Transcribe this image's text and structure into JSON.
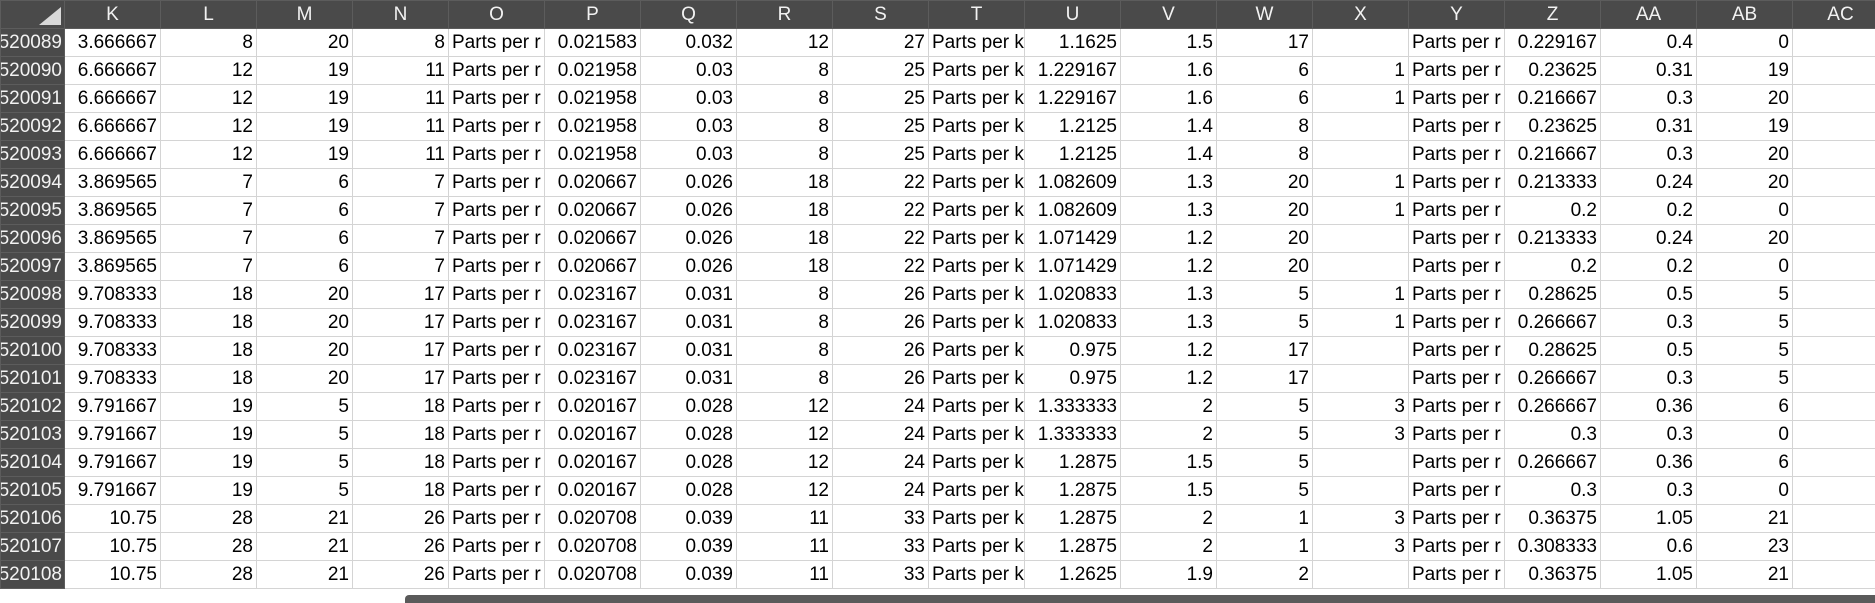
{
  "columns": [
    "K",
    "L",
    "M",
    "N",
    "O",
    "P",
    "Q",
    "R",
    "S",
    "T",
    "U",
    "V",
    "W",
    "X",
    "Y",
    "Z",
    "AA",
    "AB",
    "AC"
  ],
  "text_columns": [
    "O",
    "T",
    "Y"
  ],
  "rows": [
    {
      "id": "520089",
      "cells": [
        "3.666667",
        "8",
        "20",
        "8",
        "Parts per r",
        "0.021583",
        "0.032",
        "12",
        "27",
        "Parts per k",
        "1.1625",
        "1.5",
        "17",
        "",
        "Parts per r",
        "0.229167",
        "0.4",
        "0",
        ""
      ]
    },
    {
      "id": "520090",
      "cells": [
        "6.666667",
        "12",
        "19",
        "11",
        "Parts per r",
        "0.021958",
        "0.03",
        "8",
        "25",
        "Parts per k",
        "1.229167",
        "1.6",
        "6",
        "1",
        "Parts per r",
        "0.23625",
        "0.31",
        "19",
        ""
      ]
    },
    {
      "id": "520091",
      "cells": [
        "6.666667",
        "12",
        "19",
        "11",
        "Parts per r",
        "0.021958",
        "0.03",
        "8",
        "25",
        "Parts per k",
        "1.229167",
        "1.6",
        "6",
        "1",
        "Parts per r",
        "0.216667",
        "0.3",
        "20",
        ""
      ]
    },
    {
      "id": "520092",
      "cells": [
        "6.666667",
        "12",
        "19",
        "11",
        "Parts per r",
        "0.021958",
        "0.03",
        "8",
        "25",
        "Parts per k",
        "1.2125",
        "1.4",
        "8",
        "",
        "Parts per r",
        "0.23625",
        "0.31",
        "19",
        ""
      ]
    },
    {
      "id": "520093",
      "cells": [
        "6.666667",
        "12",
        "19",
        "11",
        "Parts per r",
        "0.021958",
        "0.03",
        "8",
        "25",
        "Parts per k",
        "1.2125",
        "1.4",
        "8",
        "",
        "Parts per r",
        "0.216667",
        "0.3",
        "20",
        ""
      ]
    },
    {
      "id": "520094",
      "cells": [
        "3.869565",
        "7",
        "6",
        "7",
        "Parts per r",
        "0.020667",
        "0.026",
        "18",
        "22",
        "Parts per k",
        "1.082609",
        "1.3",
        "20",
        "1",
        "Parts per r",
        "0.213333",
        "0.24",
        "20",
        ""
      ]
    },
    {
      "id": "520095",
      "cells": [
        "3.869565",
        "7",
        "6",
        "7",
        "Parts per r",
        "0.020667",
        "0.026",
        "18",
        "22",
        "Parts per k",
        "1.082609",
        "1.3",
        "20",
        "1",
        "Parts per r",
        "0.2",
        "0.2",
        "0",
        ""
      ]
    },
    {
      "id": "520096",
      "cells": [
        "3.869565",
        "7",
        "6",
        "7",
        "Parts per r",
        "0.020667",
        "0.026",
        "18",
        "22",
        "Parts per k",
        "1.071429",
        "1.2",
        "20",
        "",
        "Parts per r",
        "0.213333",
        "0.24",
        "20",
        ""
      ]
    },
    {
      "id": "520097",
      "cells": [
        "3.869565",
        "7",
        "6",
        "7",
        "Parts per r",
        "0.020667",
        "0.026",
        "18",
        "22",
        "Parts per k",
        "1.071429",
        "1.2",
        "20",
        "",
        "Parts per r",
        "0.2",
        "0.2",
        "0",
        ""
      ]
    },
    {
      "id": "520098",
      "cells": [
        "9.708333",
        "18",
        "20",
        "17",
        "Parts per r",
        "0.023167",
        "0.031",
        "8",
        "26",
        "Parts per k",
        "1.020833",
        "1.3",
        "5",
        "1",
        "Parts per r",
        "0.28625",
        "0.5",
        "5",
        ""
      ]
    },
    {
      "id": "520099",
      "cells": [
        "9.708333",
        "18",
        "20",
        "17",
        "Parts per r",
        "0.023167",
        "0.031",
        "8",
        "26",
        "Parts per k",
        "1.020833",
        "1.3",
        "5",
        "1",
        "Parts per r",
        "0.266667",
        "0.3",
        "5",
        ""
      ]
    },
    {
      "id": "520100",
      "cells": [
        "9.708333",
        "18",
        "20",
        "17",
        "Parts per r",
        "0.023167",
        "0.031",
        "8",
        "26",
        "Parts per k",
        "0.975",
        "1.2",
        "17",
        "",
        "Parts per r",
        "0.28625",
        "0.5",
        "5",
        ""
      ]
    },
    {
      "id": "520101",
      "cells": [
        "9.708333",
        "18",
        "20",
        "17",
        "Parts per r",
        "0.023167",
        "0.031",
        "8",
        "26",
        "Parts per k",
        "0.975",
        "1.2",
        "17",
        "",
        "Parts per r",
        "0.266667",
        "0.3",
        "5",
        ""
      ]
    },
    {
      "id": "520102",
      "cells": [
        "9.791667",
        "19",
        "5",
        "18",
        "Parts per r",
        "0.020167",
        "0.028",
        "12",
        "24",
        "Parts per k",
        "1.333333",
        "2",
        "5",
        "3",
        "Parts per r",
        "0.266667",
        "0.36",
        "6",
        ""
      ]
    },
    {
      "id": "520103",
      "cells": [
        "9.791667",
        "19",
        "5",
        "18",
        "Parts per r",
        "0.020167",
        "0.028",
        "12",
        "24",
        "Parts per k",
        "1.333333",
        "2",
        "5",
        "3",
        "Parts per r",
        "0.3",
        "0.3",
        "0",
        ""
      ]
    },
    {
      "id": "520104",
      "cells": [
        "9.791667",
        "19",
        "5",
        "18",
        "Parts per r",
        "0.020167",
        "0.028",
        "12",
        "24",
        "Parts per k",
        "1.2875",
        "1.5",
        "5",
        "",
        "Parts per r",
        "0.266667",
        "0.36",
        "6",
        ""
      ]
    },
    {
      "id": "520105",
      "cells": [
        "9.791667",
        "19",
        "5",
        "18",
        "Parts per r",
        "0.020167",
        "0.028",
        "12",
        "24",
        "Parts per k",
        "1.2875",
        "1.5",
        "5",
        "",
        "Parts per r",
        "0.3",
        "0.3",
        "0",
        ""
      ]
    },
    {
      "id": "520106",
      "cells": [
        "10.75",
        "28",
        "21",
        "26",
        "Parts per r",
        "0.020708",
        "0.039",
        "11",
        "33",
        "Parts per k",
        "1.2875",
        "2",
        "1",
        "3",
        "Parts per r",
        "0.36375",
        "1.05",
        "21",
        ""
      ]
    },
    {
      "id": "520107",
      "cells": [
        "10.75",
        "28",
        "21",
        "26",
        "Parts per r",
        "0.020708",
        "0.039",
        "11",
        "33",
        "Parts per k",
        "1.2875",
        "2",
        "1",
        "3",
        "Parts per r",
        "0.308333",
        "0.6",
        "23",
        ""
      ]
    },
    {
      "id": "520108",
      "cells": [
        "10.75",
        "28",
        "21",
        "26",
        "Parts per r",
        "0.020708",
        "0.039",
        "11",
        "33",
        "Parts per k",
        "1.2625",
        "1.9",
        "2",
        "",
        "Parts per r",
        "0.36375",
        "1.05",
        "21",
        ""
      ]
    }
  ]
}
